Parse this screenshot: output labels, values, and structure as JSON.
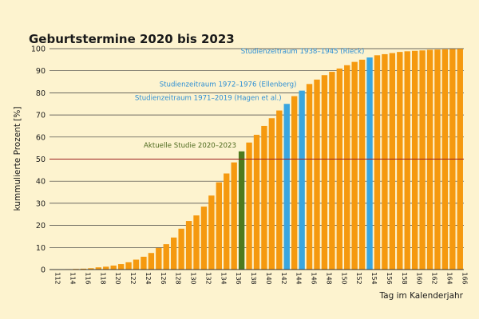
{
  "chart_data": {
    "type": "bar",
    "title": "Geburtstermine 2020 bis 2023",
    "xlabel": "Tag im Kalenderjahr",
    "ylabel": "kummulierte Prozent [%]",
    "ylim": [
      0,
      100
    ],
    "yticks": [
      0,
      10,
      20,
      30,
      40,
      50,
      60,
      70,
      80,
      90,
      100
    ],
    "xticks": [
      112,
      114,
      116,
      118,
      120,
      122,
      124,
      126,
      128,
      130,
      132,
      134,
      136,
      138,
      140,
      142,
      144,
      146,
      148,
      150,
      152,
      154,
      156,
      158,
      160,
      162,
      164,
      166
    ],
    "grid": "horizontal",
    "categories": [
      112,
      113,
      114,
      115,
      116,
      117,
      118,
      119,
      120,
      121,
      122,
      123,
      124,
      125,
      126,
      127,
      128,
      129,
      130,
      131,
      132,
      133,
      134,
      135,
      136,
      137,
      138,
      139,
      140,
      141,
      142,
      143,
      144,
      145,
      146,
      147,
      148,
      149,
      150,
      151,
      152,
      153,
      154,
      155,
      156,
      157,
      158,
      159,
      160,
      161,
      162,
      163,
      164,
      165,
      166
    ],
    "values": [
      0,
      0,
      0.2,
      0.3,
      0.4,
      0.6,
      1.0,
      1.3,
      1.8,
      2.5,
      3.3,
      4.5,
      5.8,
      7.5,
      9.8,
      11.5,
      14.5,
      18.5,
      22.0,
      24.5,
      28.5,
      33.5,
      39.5,
      43.5,
      48.5,
      53.5,
      57.5,
      61.0,
      65.0,
      68.5,
      72.0,
      75.0,
      78.5,
      81.0,
      84.0,
      86.0,
      88.0,
      89.5,
      91.0,
      92.5,
      94.0,
      95.0,
      96.0,
      97.0,
      97.5,
      98.0,
      98.5,
      98.8,
      99.0,
      99.2,
      99.5,
      99.6,
      99.7,
      99.8,
      99.9
    ],
    "bar_color": "#f5990f",
    "highlights": [
      {
        "day": 137,
        "color": "#4e7a1e",
        "label": "Aktuelle Studie 2020–2023",
        "label_color": "#4e6a1e"
      },
      {
        "day": 143,
        "color": "#3aa6e0",
        "label": "Studienzeitraum 1971–2019 (Hagen et al.)",
        "label_color": "#2e8fd4"
      },
      {
        "day": 145,
        "color": "#3aa6e0",
        "label": "Studienzeitraum 1972–1976 (Ellenberg)",
        "label_color": "#2e8fd4"
      },
      {
        "day": 154,
        "color": "#3aa6e0",
        "label": "Studienzeitraum 1938–1945 (Rieck)",
        "label_color": "#2e8fd4"
      }
    ],
    "reference_line": {
      "value": 50,
      "color": "#9b1c1c"
    }
  }
}
